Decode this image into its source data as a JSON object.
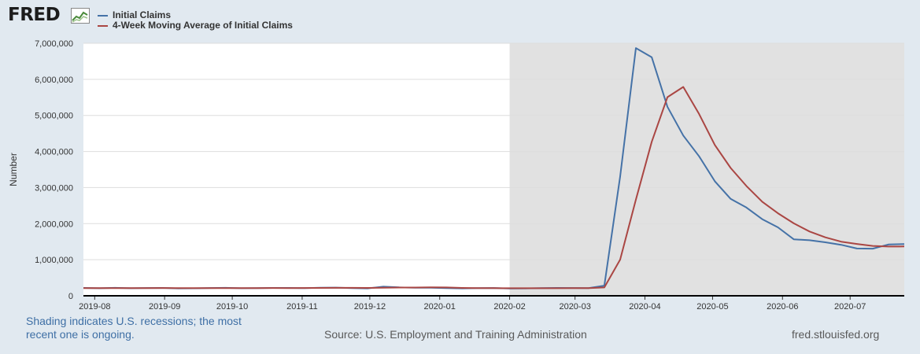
{
  "header": {
    "logo_text": "FRED"
  },
  "legend": [
    {
      "label": "Initial Claims",
      "color": "#4572a7"
    },
    {
      "label": "4-Week Moving Average of Initial Claims",
      "color": "#aa4643"
    }
  ],
  "footer": {
    "recession_note": "Shading indicates U.S. recessions; the most recent one is ongoing.",
    "source": "Source: U.S. Employment and Training Administration",
    "url": "fred.stlouisfed.org"
  },
  "colors": {
    "background": "#e1e9f0",
    "plot_background": "#ffffff",
    "recession_shading": "#e1e1e1",
    "gridline": "#dddddd",
    "axis": "#000000"
  },
  "chart_data": {
    "type": "line",
    "title": "",
    "xlabel": "",
    "ylabel": "Number",
    "ylim": [
      0,
      7000000
    ],
    "xlim": [
      "2019-07-27",
      "2020-07-25"
    ],
    "grid": true,
    "legend_position": "top-left",
    "yticks": [
      0,
      1000000,
      2000000,
      3000000,
      4000000,
      5000000,
      6000000,
      7000000
    ],
    "ytick_labels": [
      "0",
      "1,000,000",
      "2,000,000",
      "3,000,000",
      "4,000,000",
      "5,000,000",
      "6,000,000",
      "7,000,000"
    ],
    "xticks": [
      "2019-08-01",
      "2019-09-01",
      "2019-10-01",
      "2019-11-01",
      "2019-12-01",
      "2020-01-01",
      "2020-02-01",
      "2020-03-01",
      "2020-04-01",
      "2020-05-01",
      "2020-06-01",
      "2020-07-01"
    ],
    "xtick_labels": [
      "2019-08",
      "2019-09",
      "2019-10",
      "2019-11",
      "2019-12",
      "2020-01",
      "2020-02",
      "2020-03",
      "2020-04",
      "2020-05",
      "2020-06",
      "2020-07"
    ],
    "recession_shading": {
      "start": "2020-02-01",
      "end": "2020-07-25"
    },
    "x": [
      "2019-07-27",
      "2019-08-03",
      "2019-08-10",
      "2019-08-17",
      "2019-08-24",
      "2019-08-31",
      "2019-09-07",
      "2019-09-14",
      "2019-09-21",
      "2019-09-28",
      "2019-10-05",
      "2019-10-12",
      "2019-10-19",
      "2019-10-26",
      "2019-11-02",
      "2019-11-09",
      "2019-11-16",
      "2019-11-23",
      "2019-11-30",
      "2019-12-07",
      "2019-12-14",
      "2019-12-21",
      "2019-12-28",
      "2020-01-04",
      "2020-01-11",
      "2020-01-18",
      "2020-01-25",
      "2020-02-01",
      "2020-02-08",
      "2020-02-15",
      "2020-02-22",
      "2020-02-29",
      "2020-03-07",
      "2020-03-14",
      "2020-03-21",
      "2020-03-28",
      "2020-04-04",
      "2020-04-11",
      "2020-04-18",
      "2020-04-25",
      "2020-05-02",
      "2020-05-09",
      "2020-05-16",
      "2020-05-23",
      "2020-05-30",
      "2020-06-06",
      "2020-06-13",
      "2020-06-20",
      "2020-06-27",
      "2020-07-04",
      "2020-07-11",
      "2020-07-18",
      "2020-07-25"
    ],
    "series": [
      {
        "name": "Initial Claims",
        "color": "#4572a7",
        "values": [
          218000,
          209000,
          220000,
          210000,
          215000,
          218000,
          204000,
          208000,
          215000,
          220000,
          210000,
          214000,
          218000,
          217000,
          212000,
          225000,
          227000,
          213000,
          204000,
          252000,
          234000,
          224000,
          223000,
          214000,
          204000,
          212000,
          216000,
          203000,
          205000,
          211000,
          219000,
          216000,
          211000,
          282000,
          3307000,
          6867000,
          6615000,
          5237000,
          4442000,
          3867000,
          3176000,
          2687000,
          2446000,
          2123000,
          1897000,
          1566000,
          1540000,
          1482000,
          1413000,
          1310000,
          1307000,
          1422000,
          1434000
        ]
      },
      {
        "name": "4-Week Moving Average of Initial Claims",
        "color": "#aa4643",
        "values": [
          212000,
          213000,
          214000,
          214500,
          213500,
          215750,
          211750,
          211250,
          211250,
          211750,
          213250,
          214750,
          215500,
          214750,
          215250,
          218000,
          220250,
          219250,
          217250,
          224000,
          228250,
          228500,
          233250,
          231250,
          218750,
          213250,
          211500,
          208750,
          209000,
          208750,
          209500,
          212750,
          213500,
          232000,
          1004000,
          2668000,
          4267000,
          5506500,
          5790000,
          5040000,
          4180000,
          3543000,
          3044000,
          2608000,
          2288000,
          2008000,
          1782000,
          1621000,
          1500000,
          1438000,
          1383000,
          1366000,
          1368000
        ]
      }
    ]
  }
}
